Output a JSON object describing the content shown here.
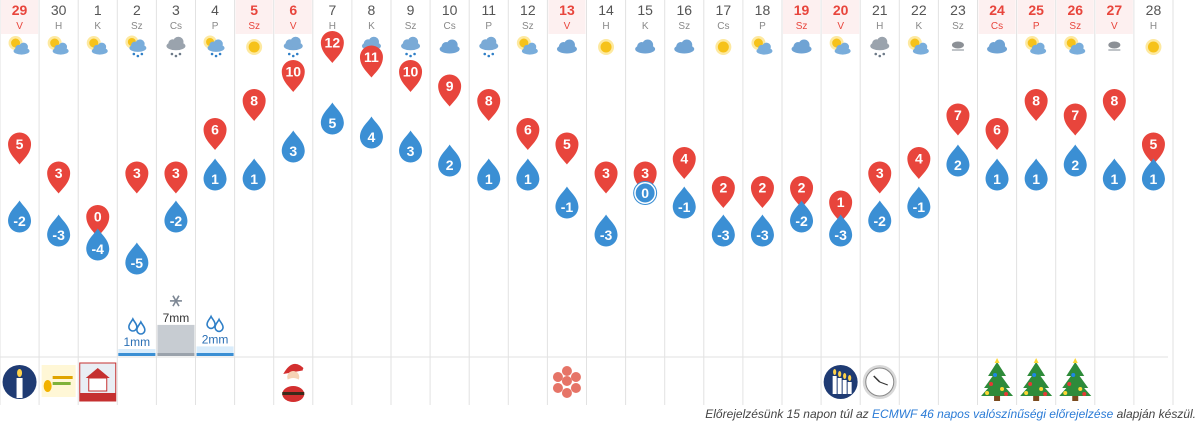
{
  "chart_data": {
    "type": "line",
    "days": [
      {
        "num": "29",
        "wd": "V",
        "weekend": true,
        "icon": "partly-sunny-icon",
        "max": 5,
        "min": -2
      },
      {
        "num": "30",
        "wd": "H",
        "weekend": false,
        "icon": "partly-sunny-icon",
        "max": 3,
        "min": -3
      },
      {
        "num": "1",
        "wd": "K",
        "weekend": false,
        "icon": "partly-sunny-icon",
        "max": 0,
        "min": -4
      },
      {
        "num": "2",
        "wd": "Sz",
        "weekend": false,
        "icon": "cloud-rain-sun-icon",
        "max": 3,
        "min": -5
      },
      {
        "num": "3",
        "wd": "Cs",
        "weekend": false,
        "icon": "cloud-snow-icon",
        "max": 3,
        "min": -2
      },
      {
        "num": "4",
        "wd": "P",
        "weekend": false,
        "icon": "cloud-rain-sun-icon",
        "max": 6,
        "min": 1
      },
      {
        "num": "5",
        "wd": "Sz",
        "weekend": true,
        "icon": "sun-icon",
        "max": 8,
        "min": 1
      },
      {
        "num": "6",
        "wd": "V",
        "weekend": true,
        "icon": "cloud-rain-icon",
        "max": 10,
        "min": 3
      },
      {
        "num": "7",
        "wd": "H",
        "weekend": false,
        "icon": "cloud-rain-icon",
        "max": 12,
        "min": 5
      },
      {
        "num": "8",
        "wd": "K",
        "weekend": false,
        "icon": "cloud-rain-icon",
        "max": 11,
        "min": 4
      },
      {
        "num": "9",
        "wd": "Sz",
        "weekend": false,
        "icon": "cloud-rain-icon",
        "max": 10,
        "min": 3
      },
      {
        "num": "10",
        "wd": "Cs",
        "weekend": false,
        "icon": "cloud-icon",
        "max": 9,
        "min": 2
      },
      {
        "num": "11",
        "wd": "P",
        "weekend": false,
        "icon": "cloud-rain-icon",
        "max": 8,
        "min": 1
      },
      {
        "num": "12",
        "wd": "Sz",
        "weekend": false,
        "icon": "partly-sunny-icon",
        "max": 6,
        "min": 1
      },
      {
        "num": "13",
        "wd": "V",
        "weekend": true,
        "icon": "cloud-icon",
        "max": 5,
        "min": -1
      },
      {
        "num": "14",
        "wd": "H",
        "weekend": false,
        "icon": "sun-icon",
        "max": 3,
        "min": -3
      },
      {
        "num": "15",
        "wd": "K",
        "weekend": false,
        "icon": "cloud-icon",
        "max": 3,
        "min": 0
      },
      {
        "num": "16",
        "wd": "Sz",
        "weekend": false,
        "icon": "cloud-icon",
        "max": 4,
        "min": -1
      },
      {
        "num": "17",
        "wd": "Cs",
        "weekend": false,
        "icon": "sun-icon",
        "max": 2,
        "min": -3
      },
      {
        "num": "18",
        "wd": "P",
        "weekend": false,
        "icon": "partly-sunny-icon",
        "max": 2,
        "min": -3
      },
      {
        "num": "19",
        "wd": "Sz",
        "weekend": true,
        "icon": "cloud-icon",
        "max": 2,
        "min": -2
      },
      {
        "num": "20",
        "wd": "V",
        "weekend": true,
        "icon": "partly-sunny-icon",
        "max": 1,
        "min": -3
      },
      {
        "num": "21",
        "wd": "H",
        "weekend": false,
        "icon": "cloud-snow-icon",
        "max": 3,
        "min": -2
      },
      {
        "num": "22",
        "wd": "K",
        "weekend": false,
        "icon": "partly-sunny-icon",
        "max": 4,
        "min": -1
      },
      {
        "num": "23",
        "wd": "Sz",
        "weekend": false,
        "icon": "fog-icon",
        "max": 7,
        "min": 2
      },
      {
        "num": "24",
        "wd": "Cs",
        "weekend": true,
        "icon": "cloud-icon",
        "max": 6,
        "min": 1
      },
      {
        "num": "25",
        "wd": "P",
        "weekend": true,
        "icon": "partly-sunny-icon",
        "max": 8,
        "min": 1
      },
      {
        "num": "26",
        "wd": "Sz",
        "weekend": true,
        "icon": "partly-sunny-icon",
        "max": 7,
        "min": 2
      },
      {
        "num": "27",
        "wd": "V",
        "weekend": true,
        "icon": "fog-icon",
        "max": 8,
        "min": 1
      },
      {
        "num": "28",
        "wd": "H",
        "weekend": false,
        "icon": "sun-icon",
        "max": 5,
        "min": 1
      }
    ],
    "precipitation": [
      {
        "day_index": 3,
        "label": "1mm",
        "amount": 1,
        "kind": "rain"
      },
      {
        "day_index": 4,
        "label": "7mm",
        "amount": 7,
        "kind": "snow"
      },
      {
        "day_index": 5,
        "label": "2mm",
        "amount": 2,
        "kind": "rain"
      }
    ],
    "events": [
      {
        "day_index": 0,
        "icon": "candle-icon"
      },
      {
        "day_index": 1,
        "icon": "teacher-day-badge-icon"
      },
      {
        "day_index": 2,
        "icon": "house-picture-icon"
      },
      {
        "day_index": 7,
        "icon": "santa-claus-icon"
      },
      {
        "day_index": 14,
        "icon": "red-ornament-icon"
      },
      {
        "day_index": 21,
        "icon": "candles-icon"
      },
      {
        "day_index": 22,
        "icon": "clock-icon"
      },
      {
        "day_index": 25,
        "icon": "christmas-tree-icon"
      },
      {
        "day_index": 26,
        "icon": "christmas-tree-icon"
      },
      {
        "day_index": 27,
        "icon": "christmas-tree-icon"
      }
    ],
    "colors": {
      "max": "#e8453c",
      "min": "#3b8fd4",
      "weekend": "#e8453c",
      "weekday": "#555555",
      "grid": "#e2e2e2"
    }
  },
  "footer": {
    "prefix": "Előrejelzésünk 15 napon túl az",
    "link": "ECMWF 46 napos valószínűségi előrejelzése",
    "suffix": "alapján készül."
  }
}
